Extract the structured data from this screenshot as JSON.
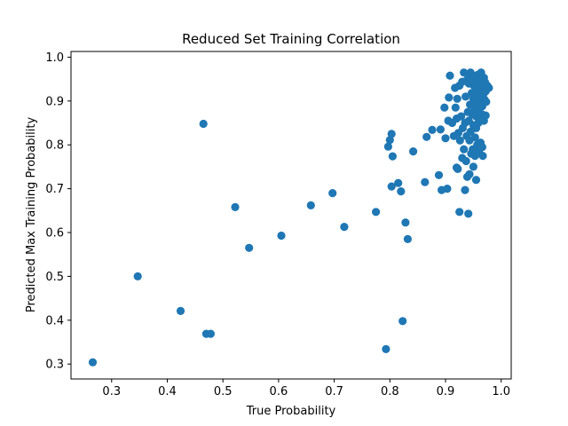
{
  "chart_data": {
    "type": "scatter",
    "title": "Reduced Set Training Correlation",
    "xlabel": "True Probability",
    "ylabel": "Predicted Max Training Probability",
    "xlim": [
      0.227,
      1.018
    ],
    "ylim": [
      0.266,
      1.013
    ],
    "xticks": [
      0.3,
      0.4,
      0.5,
      0.6,
      0.7,
      0.8,
      0.9,
      1.0
    ],
    "xtick_labels": [
      "0.3",
      "0.4",
      "0.5",
      "0.6",
      "0.7",
      "0.8",
      "0.9",
      "1.0"
    ],
    "yticks": [
      0.3,
      0.4,
      0.5,
      0.6,
      0.7,
      0.8,
      0.9,
      1.0
    ],
    "ytick_labels": [
      "0.3",
      "0.4",
      "0.5",
      "0.6",
      "0.7",
      "0.8",
      "0.9",
      "1.0"
    ],
    "grid": false,
    "marker_color": "#1f77b4",
    "points": [
      [
        0.266,
        0.304
      ],
      [
        0.347,
        0.5
      ],
      [
        0.424,
        0.421
      ],
      [
        0.465,
        0.848
      ],
      [
        0.47,
        0.369
      ],
      [
        0.478,
        0.369
      ],
      [
        0.522,
        0.658
      ],
      [
        0.547,
        0.565
      ],
      [
        0.605,
        0.593
      ],
      [
        0.658,
        0.662
      ],
      [
        0.697,
        0.69
      ],
      [
        0.718,
        0.613
      ],
      [
        0.775,
        0.647
      ],
      [
        0.793,
        0.334
      ],
      [
        0.797,
        0.796
      ],
      [
        0.8,
        0.811
      ],
      [
        0.803,
        0.825
      ],
      [
        0.803,
        0.705
      ],
      [
        0.805,
        0.774
      ],
      [
        0.815,
        0.713
      ],
      [
        0.82,
        0.694
      ],
      [
        0.823,
        0.398
      ],
      [
        0.828,
        0.623
      ],
      [
        0.832,
        0.585
      ],
      [
        0.842,
        0.785
      ],
      [
        0.863,
        0.715
      ],
      [
        0.866,
        0.818
      ],
      [
        0.876,
        0.834
      ],
      [
        0.888,
        0.731
      ],
      [
        0.891,
        0.835
      ],
      [
        0.893,
        0.697
      ],
      [
        0.898,
        0.885
      ],
      [
        0.9,
        0.815
      ],
      [
        0.903,
        0.7
      ],
      [
        0.905,
        0.855
      ],
      [
        0.906,
        0.908
      ],
      [
        0.908,
        0.958
      ],
      [
        0.912,
        0.85
      ],
      [
        0.915,
        0.82
      ],
      [
        0.917,
        0.93
      ],
      [
        0.918,
        0.885
      ],
      [
        0.92,
        0.86
      ],
      [
        0.92,
        0.748
      ],
      [
        0.921,
        0.905
      ],
      [
        0.922,
        0.745
      ],
      [
        0.923,
        0.827
      ],
      [
        0.925,
        0.647
      ],
      [
        0.925,
        0.935
      ],
      [
        0.926,
        0.81
      ],
      [
        0.928,
        0.865
      ],
      [
        0.93,
        0.944
      ],
      [
        0.93,
        0.77
      ],
      [
        0.931,
        0.838
      ],
      [
        0.933,
        0.965
      ],
      [
        0.933,
        0.79
      ],
      [
        0.935,
        0.85
      ],
      [
        0.935,
        0.697
      ],
      [
        0.936,
        0.91
      ],
      [
        0.937,
        0.946
      ],
      [
        0.937,
        0.763
      ],
      [
        0.938,
        0.82
      ],
      [
        0.939,
        0.727
      ],
      [
        0.94,
        0.96
      ],
      [
        0.94,
        0.875
      ],
      [
        0.941,
        0.643
      ],
      [
        0.942,
        0.94
      ],
      [
        0.942,
        0.855
      ],
      [
        0.943,
        0.81
      ],
      [
        0.943,
        0.733
      ],
      [
        0.944,
        0.892
      ],
      [
        0.945,
        0.965
      ],
      [
        0.945,
        0.83
      ],
      [
        0.946,
        0.78
      ],
      [
        0.947,
        0.918
      ],
      [
        0.948,
        0.948
      ],
      [
        0.948,
        0.87
      ],
      [
        0.949,
        0.79
      ],
      [
        0.95,
        0.905
      ],
      [
        0.95,
        0.845
      ],
      [
        0.95,
        0.75
      ],
      [
        0.951,
        0.935
      ],
      [
        0.952,
        0.957
      ],
      [
        0.952,
        0.88
      ],
      [
        0.953,
        0.817
      ],
      [
        0.953,
        0.775
      ],
      [
        0.954,
        0.925
      ],
      [
        0.954,
        0.895
      ],
      [
        0.955,
        0.865
      ],
      [
        0.955,
        0.838
      ],
      [
        0.955,
        0.72
      ],
      [
        0.956,
        0.945
      ],
      [
        0.957,
        0.91
      ],
      [
        0.957,
        0.8
      ],
      [
        0.958,
        0.96
      ],
      [
        0.958,
        0.88
      ],
      [
        0.959,
        0.93
      ],
      [
        0.959,
        0.85
      ],
      [
        0.96,
        0.903
      ],
      [
        0.96,
        0.786
      ],
      [
        0.961,
        0.94
      ],
      [
        0.961,
        0.92
      ],
      [
        0.962,
        0.895
      ],
      [
        0.962,
        0.862
      ],
      [
        0.963,
        0.955
      ],
      [
        0.963,
        0.805
      ],
      [
        0.964,
        0.928
      ],
      [
        0.964,
        0.965
      ],
      [
        0.965,
        0.91
      ],
      [
        0.965,
        0.87
      ],
      [
        0.966,
        0.888
      ],
      [
        0.966,
        0.795
      ],
      [
        0.967,
        0.94
      ],
      [
        0.967,
        0.775
      ],
      [
        0.968,
        0.915
      ],
      [
        0.969,
        0.953
      ],
      [
        0.969,
        0.855
      ],
      [
        0.97,
        0.93
      ],
      [
        0.97,
        0.903
      ],
      [
        0.971,
        0.943
      ],
      [
        0.972,
        0.922
      ],
      [
        0.972,
        0.867
      ],
      [
        0.973,
        0.898
      ],
      [
        0.975,
        0.935
      ],
      [
        0.978,
        0.93
      ]
    ]
  }
}
